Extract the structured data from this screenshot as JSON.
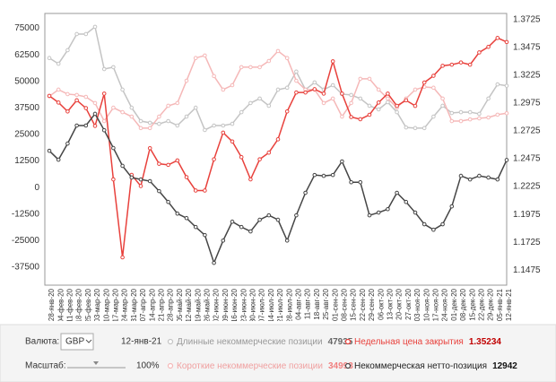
{
  "chart_data": {
    "type": "line",
    "categories": [
      "28-янв-20",
      "04-фев-20",
      "11-фев-20",
      "18-фев-20",
      "25-фев-20",
      "03-мар-20",
      "10-мар-20",
      "17-мар-20",
      "24-мар-20",
      "31-мар-20",
      "07-апр-20",
      "14-апр-20",
      "21-апр-20",
      "28-апр-20",
      "05-май-20",
      "12-май-20",
      "19-май-20",
      "26-май-20",
      "02-июн-20",
      "09-июн-20",
      "16-июн-20",
      "23-июн-20",
      "30-июн-20",
      "07-июл-20",
      "14-июл-20",
      "21-июл-20",
      "28-июл-20",
      "04-авг-20",
      "11-авг-20",
      "18-авг-20",
      "25-авг-20",
      "01-сен-20",
      "08-сен-20",
      "15-сен-20",
      "22-сен-20",
      "29-сен-20",
      "06-окт-20",
      "13-окт-20",
      "20-окт-20",
      "27-окт-20",
      "03-ноя-20",
      "10-ноя-20",
      "17-ноя-20",
      "24-ноя-20",
      "01-дек-20",
      "08-дек-20",
      "15-дек-20",
      "22-дек-20",
      "29-дек-20",
      "05-янв-21",
      "12-янв-21"
    ],
    "series": [
      {
        "name": "Длинные некоммерческие позиции",
        "color": "#c4c4c4",
        "values": [
          61000,
          58300,
          64700,
          72300,
          72300,
          75700,
          55800,
          56700,
          46100,
          37600,
          31300,
          30500,
          30000,
          31300,
          29200,
          33400,
          37600,
          27100,
          29200,
          29200,
          30000,
          35500,
          39800,
          41900,
          38500,
          46100,
          47000,
          54600,
          46100,
          49500,
          46100,
          48200,
          44000,
          43600,
          41900,
          38500,
          36800,
          40200,
          35500,
          28300,
          28000,
          28000,
          33400,
          38500,
          35100,
          35500,
          35500,
          34700,
          41900,
          48600,
          47935
        ]
      },
      {
        "name": "Короткие некоммерческие позиции",
        "color": "#f5b8b8",
        "values": [
          43000,
          46100,
          44000,
          43600,
          42700,
          39800,
          31300,
          37600,
          35500,
          33400,
          28000,
          28000,
          33400,
          38500,
          39800,
          50300,
          61000,
          62200,
          52500,
          46100,
          48200,
          56700,
          56700,
          56700,
          59600,
          64300,
          61000,
          50300,
          46100,
          46100,
          39800,
          41900,
          33400,
          39800,
          51200,
          51200,
          46100,
          41900,
          37600,
          41900,
          46100,
          47400,
          47000,
          41900,
          31300,
          31300,
          32100,
          32600,
          33000,
          34300,
          34993
        ]
      },
      {
        "name": "Недельная цена закрытия",
        "color": "#e8413c",
        "axis": "y2",
        "values": [
          1.304,
          1.298,
          1.29,
          1.3,
          1.293,
          1.277,
          1.306,
          1.229,
          1.159,
          1.233,
          1.223,
          1.257,
          1.243,
          1.242,
          1.246,
          1.231,
          1.219,
          1.219,
          1.247,
          1.271,
          1.263,
          1.249,
          1.229,
          1.247,
          1.253,
          1.265,
          1.29,
          1.307,
          1.307,
          1.31,
          1.306,
          1.335,
          1.306,
          1.285,
          1.283,
          1.287,
          1.298,
          1.306,
          1.295,
          1.3,
          1.295,
          1.316,
          1.322,
          1.331,
          1.332,
          1.334,
          1.332,
          1.343,
          1.348,
          1.356,
          1.35234
        ]
      },
      {
        "name": "Некоммерческая нетто-позиция",
        "color": "#454545",
        "values": [
          17300,
          13100,
          20700,
          29200,
          29200,
          34700,
          27000,
          18600,
          10200,
          4700,
          3800,
          3000,
          -1700,
          -6800,
          -12300,
          -14400,
          -18600,
          -22400,
          -35500,
          -25000,
          -16100,
          -18600,
          -20700,
          -15200,
          -13100,
          -15200,
          -25000,
          -13100,
          -2500,
          5900,
          5500,
          5900,
          12300,
          2500,
          2500,
          -13100,
          -11800,
          -10200,
          -2500,
          -6800,
          -11800,
          -17300,
          -19900,
          -17300,
          -8900,
          5500,
          3800,
          5500,
          4700,
          3800,
          12942
        ]
      }
    ],
    "ylim": [
      -46000,
      82000
    ],
    "yticks": [
      75000,
      62500,
      50000,
      37500,
      25000,
      12500,
      0,
      -12500,
      -25000,
      -37500
    ],
    "y2lim": [
      1.134,
      1.378
    ],
    "y2ticks": [
      1.3725,
      1.3475,
      1.3225,
      1.2975,
      1.2725,
      1.2475,
      1.2225,
      1.1975,
      1.1725,
      1.1475
    ],
    "grid": false
  },
  "controls": {
    "currency_label": "Валюта:",
    "currency": "GBP",
    "scale_label": "Масштаб:",
    "scale": "100%"
  }
}
